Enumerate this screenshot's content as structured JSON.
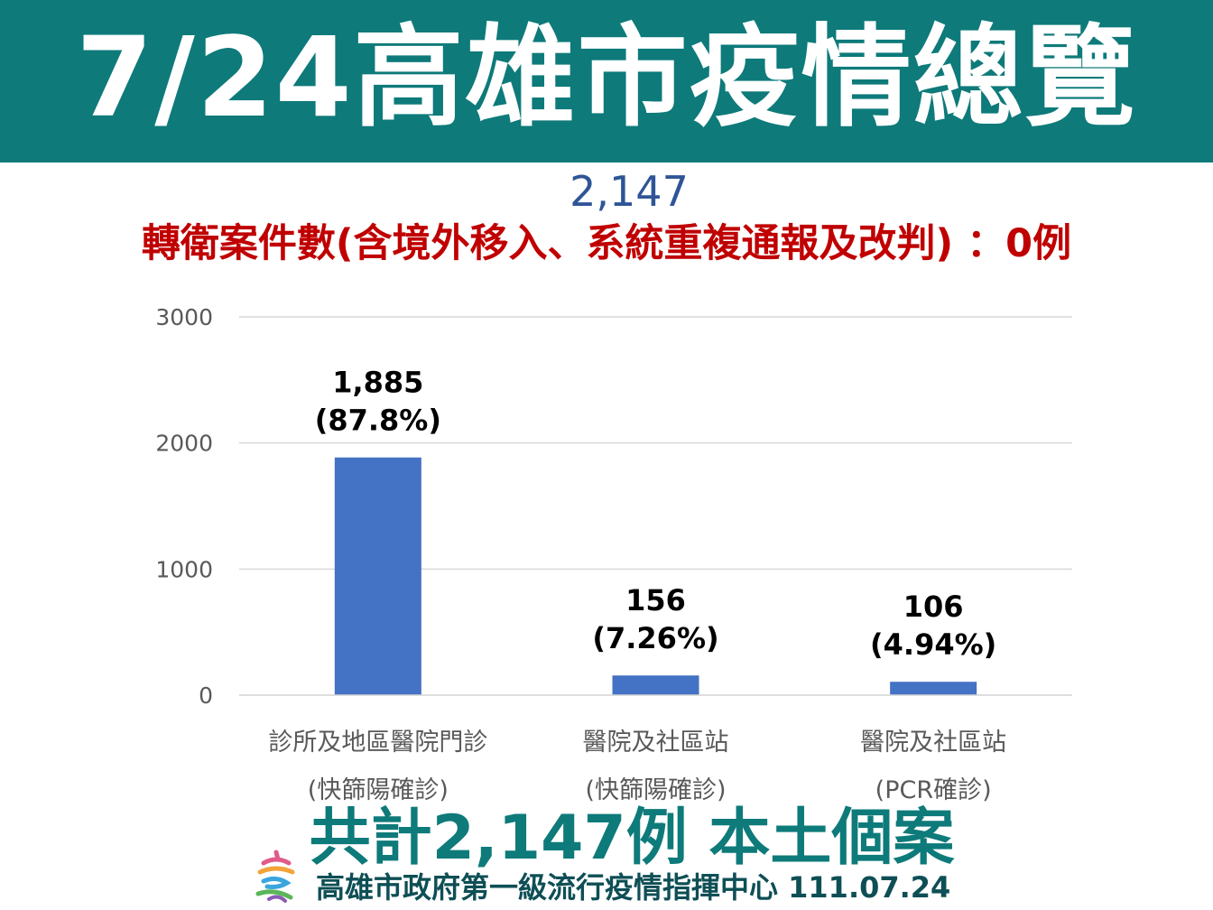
{
  "header": {
    "title": "7/24高雄市疫情總覽"
  },
  "summary": {
    "total_count": "2,147",
    "transfer_note": "轉衛案件數(含境外移入、系統重複通報及改判) ：0例"
  },
  "chart_data": {
    "type": "bar",
    "categories": [
      [
        "診所及地區醫院門診",
        "(快篩陽確診)"
      ],
      [
        "醫院及社區站",
        "(快篩陽確診)"
      ],
      [
        "醫院及社區站",
        "(PCR確診)"
      ]
    ],
    "values": [
      1885,
      156,
      106
    ],
    "data_labels": [
      [
        "1,885",
        "(87.8%)"
      ],
      [
        "156",
        "(7.26%)"
      ],
      [
        "106",
        "(4.94%)"
      ]
    ],
    "yticks": [
      "0",
      "1000",
      "2000",
      "3000"
    ],
    "ylim": [
      0,
      3000
    ],
    "grid": true,
    "bar_color": "#4472c4"
  },
  "footer": {
    "total_text": "共計2,147例 本土個案",
    "source": "高雄市政府第一級流行疫情指揮中心 111.07.24"
  },
  "colors": {
    "banner": "#0e7a7a",
    "total_number": "#2f5597",
    "transfer_text": "#c00000",
    "bar": "#4472c4",
    "grid": "#d9d9d9"
  }
}
